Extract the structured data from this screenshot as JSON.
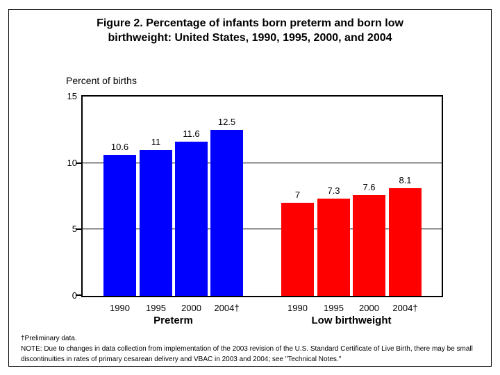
{
  "title": "Figure 2. Percentage of infants born preterm and born low birthweight: United States, 1990, 1995, 2000, and 2004",
  "y_axis_label": "Percent of births",
  "chart_data": {
    "type": "bar",
    "title": "Figure 2. Percentage of infants born preterm and born low birthweight: United States, 1990, 1995, 2000, and 2004",
    "xlabel": "",
    "ylabel": "Percent of births",
    "ylim": [
      0,
      15
    ],
    "yticks": [
      0,
      5,
      10,
      15
    ],
    "gridline_values": [
      5,
      10
    ],
    "grid": true,
    "legend": false,
    "categories": [
      "1990",
      "1995",
      "2000",
      "2004†"
    ],
    "series": [
      {
        "name": "Preterm",
        "color": "#0000ff",
        "values": [
          10.6,
          11,
          11.6,
          12.5
        ],
        "value_labels": [
          "10.6",
          "11",
          "11.6",
          "12.5"
        ]
      },
      {
        "name": "Low birthweight",
        "color": "#ff0000",
        "values": [
          7,
          7.3,
          7.6,
          8.1
        ],
        "value_labels": [
          "7",
          "7.3",
          "7.6",
          "8.1"
        ]
      }
    ]
  },
  "footnotes": {
    "dagger": "†Preliminary data.",
    "note": "NOTE: Due to changes in data collection from implementation of the 2003 revision of the U.S. Standard Certificate of Live Birth, there may be small discontinuities in rates of primary cesarean delivery and VBAC in 2003 and 2004; see \"Technical Notes.\""
  }
}
